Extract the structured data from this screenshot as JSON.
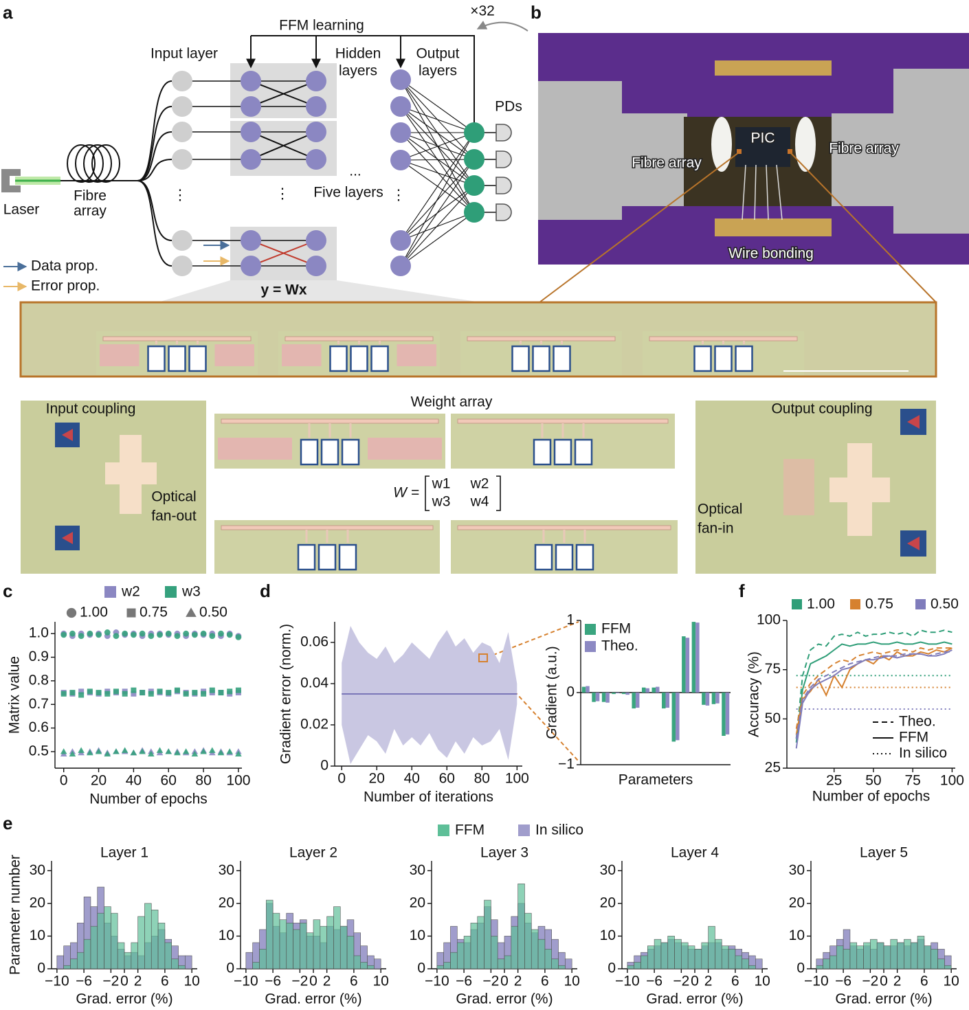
{
  "diagram": {
    "panel_label": "a",
    "feedback": "FFM learning",
    "repeat": "×32",
    "input_layer": "Input layer",
    "hidden_layers": [
      "Hidden",
      "layers"
    ],
    "output_layers": [
      "Output",
      "layers"
    ],
    "pds": "PDs",
    "laser": "Laser",
    "fibre_array": [
      "Fibre",
      "array"
    ],
    "five_layers": "Five layers",
    "ellipsis": "...",
    "vdots": "⋮",
    "data_prop": "Data prop.",
    "error_prop": "Error prop.",
    "equation": "y = Wx"
  },
  "photo": {
    "panel_label": "b",
    "pic": "PIC",
    "fibre_left": "Fibre array",
    "fibre_right": "Fibre array",
    "wire_bonding": "Wire bonding"
  },
  "micrographs": {
    "input_coupling": "Input coupling",
    "weight_array": "Weight array",
    "output_coupling": "Output coupling",
    "fan_out": [
      "Optical",
      "fan-out"
    ],
    "fan_in": [
      "Optical",
      "fan-in"
    ],
    "matrix": {
      "lhs": "W =",
      "cells": [
        "w1",
        "w2",
        "w3",
        "w4"
      ]
    }
  },
  "chart_data": [
    {
      "type": "scatter",
      "panel_label": "c",
      "xlabel": "Number of epochs",
      "ylabel": "Matrix value",
      "x": [
        0,
        5,
        10,
        15,
        20,
        25,
        30,
        35,
        40,
        45,
        50,
        55,
        60,
        65,
        70,
        75,
        80,
        85,
        90,
        95,
        100
      ],
      "levels": [
        {
          "name": "1.00",
          "marker": "circle"
        },
        {
          "name": "0.75",
          "marker": "square"
        },
        {
          "name": "0.50",
          "marker": "triangle"
        }
      ],
      "series": [
        {
          "name": "w2",
          "color": "#8b87c2",
          "levels": [
            [
              1.0,
              0.99,
              1.0,
              0.995,
              1.0,
              0.99,
              1.005,
              0.995,
              1.0,
              0.99,
              1.0,
              1.0,
              0.995,
              1.0,
              0.99,
              1.0,
              0.995,
              1.0,
              0.99,
              1.0,
              0.99
            ],
            [
              0.75,
              0.745,
              0.755,
              0.75,
              0.745,
              0.755,
              0.75,
              0.755,
              0.745,
              0.75,
              0.755,
              0.75,
              0.745,
              0.755,
              0.75,
              0.745,
              0.755,
              0.75,
              0.75,
              0.745,
              0.75
            ],
            [
              0.49,
              0.5,
              0.495,
              0.5,
              0.505,
              0.495,
              0.5,
              0.5,
              0.495,
              0.505,
              0.5,
              0.495,
              0.5,
              0.5,
              0.495,
              0.5,
              0.505,
              0.495,
              0.5,
              0.495,
              0.5
            ]
          ]
        },
        {
          "name": "w3",
          "color": "#35a17d",
          "levels": [
            [
              0.995,
              1.0,
              0.99,
              1.0,
              0.995,
              1.005,
              0.99,
              1.0,
              0.995,
              1.0,
              0.99,
              0.995,
              1.0,
              0.99,
              1.0,
              0.995,
              1.0,
              0.99,
              1.0,
              0.995,
              0.985
            ],
            [
              0.745,
              0.75,
              0.74,
              0.755,
              0.75,
              0.745,
              0.755,
              0.745,
              0.76,
              0.75,
              0.745,
              0.755,
              0.75,
              0.76,
              0.745,
              0.75,
              0.745,
              0.76,
              0.75,
              0.755,
              0.76
            ],
            [
              0.5,
              0.49,
              0.505,
              0.495,
              0.5,
              0.49,
              0.5,
              0.505,
              0.495,
              0.5,
              0.49,
              0.505,
              0.5,
              0.495,
              0.5,
              0.49,
              0.5,
              0.505,
              0.495,
              0.5,
              0.49
            ]
          ]
        }
      ],
      "xlim": [
        -5,
        102
      ],
      "ylim": [
        0.43,
        1.05
      ],
      "xticks": [
        0,
        20,
        40,
        60,
        80,
        100
      ],
      "yticks": [
        0.5,
        0.6,
        0.7,
        0.8,
        0.9,
        {
          "value": 1,
          "label": "1.0"
        }
      ]
    },
    {
      "type": "band",
      "panel_label": "d",
      "xlabel": "Number of iterations",
      "ylabel": "Gradient error (norm.)",
      "x": [
        0,
        5,
        10,
        15,
        20,
        25,
        30,
        35,
        40,
        45,
        50,
        55,
        60,
        65,
        70,
        75,
        80,
        85,
        90,
        95,
        100
      ],
      "values": [
        0.035,
        0.035,
        0.035,
        0.035,
        0.035,
        0.035,
        0.035,
        0.035,
        0.035,
        0.035,
        0.035,
        0.035,
        0.035,
        0.035,
        0.035,
        0.035,
        0.035,
        0.035,
        0.035,
        0.035,
        0.035
      ],
      "upper": [
        0.05,
        0.068,
        0.06,
        0.055,
        0.052,
        0.058,
        0.05,
        0.054,
        0.06,
        0.056,
        0.052,
        0.06,
        0.066,
        0.058,
        0.062,
        0.055,
        0.06,
        0.058,
        0.05,
        0.065,
        0.04
      ],
      "lower": [
        0.02,
        0.001,
        0.008,
        0.015,
        0.012,
        0.006,
        0.018,
        0.01,
        0.014,
        0.01,
        0.016,
        0.008,
        0.004,
        0.012,
        0.006,
        0.014,
        0.01,
        0.012,
        0.018,
        0.003,
        0.03
      ],
      "color": "#7a76b8",
      "band_color": "#c9c7e2",
      "xlim": [
        -4,
        103
      ],
      "ylim": [
        0,
        0.07
      ],
      "xticks": [
        0,
        20,
        40,
        60,
        80,
        100
      ],
      "yticks": [
        0,
        0.02,
        0.04,
        0.06
      ]
    },
    {
      "type": "bar",
      "xlabel": "Parameters",
      "ylabel": "Gradient (a.u.)",
      "series": [
        {
          "name": "FFM",
          "color": "#3aa57f",
          "values": [
            0.08,
            -0.13,
            -0.13,
            -0.02,
            -0.02,
            -0.22,
            0.07,
            0.07,
            -0.22,
            -0.68,
            0.78,
            0.98,
            -0.17,
            -0.16,
            -0.6
          ]
        },
        {
          "name": "Theo.",
          "color": "#8c89c3",
          "values": [
            0.09,
            -0.12,
            -0.14,
            -0.01,
            -0.03,
            -0.21,
            0.06,
            0.08,
            -0.21,
            -0.66,
            0.76,
            0.97,
            -0.18,
            -0.15,
            -0.58
          ]
        }
      ],
      "ylim": [
        -1,
        1
      ],
      "yticks": [
        {
          "value": -1,
          "label": "−1"
        },
        0,
        1
      ]
    },
    {
      "type": "histogram",
      "panel_label": "e",
      "xlabel": "Grad. error (%)",
      "ylabel": "Parameter number",
      "series": [
        {
          "name": "FFM",
          "color": "#5ebf98"
        },
        {
          "name": "In silico",
          "color": "#a09dcc"
        }
      ],
      "bins": [
        -10,
        -9,
        -8,
        -7,
        -6,
        -5,
        -4,
        -3,
        -2,
        -1,
        0,
        1,
        2,
        3,
        4,
        5,
        6,
        7,
        8,
        9,
        10
      ],
      "xlim": [
        -10.8,
        10.8
      ],
      "ylim": [
        0,
        33
      ],
      "xticks": [
        {
          "value": -10,
          "label": "−10"
        },
        {
          "value": -6,
          "label": "−6"
        },
        {
          "value": -2,
          "label": "−2"
        },
        0,
        2,
        6,
        10
      ],
      "yticks": [
        0,
        10,
        20,
        30
      ],
      "panels": [
        {
          "title": "Layer 1",
          "values": [
            [
              0,
              1,
              3,
              5,
              9,
              13,
              17,
              19,
              17,
              8,
              5,
              8,
              16,
              20,
              18,
              14,
              8,
              3,
              1,
              0
            ],
            [
              4,
              7,
              8,
              14,
              22,
              19,
              25,
              14,
              10,
              6,
              4,
              5,
              4,
              8,
              10,
              12,
              9,
              7,
              4,
              4
            ]
          ]
        },
        {
          "title": "Layer 2",
          "values": [
            [
              0,
              2,
              6,
              21,
              17,
              15,
              14,
              12,
              14,
              11,
              15,
              13,
              16,
              19,
              13,
              10,
              4,
              2,
              1,
              0
            ],
            [
              5,
              8,
              12,
              20,
              13,
              11,
              17,
              14,
              15,
              10,
              10,
              8,
              13,
              12,
              13,
              15,
              11,
              7,
              4,
              3
            ]
          ]
        },
        {
          "title": "Layer 3",
          "values": [
            [
              1,
              2,
              5,
              8,
              10,
              14,
              16,
              21,
              10,
              3,
              4,
              13,
              26,
              17,
              12,
              9,
              6,
              3,
              1,
              0
            ],
            [
              5,
              8,
              13,
              9,
              8,
              12,
              14,
              19,
              15,
              8,
              10,
              16,
              20,
              14,
              11,
              13,
              12,
              9,
              5,
              3
            ]
          ]
        },
        {
          "title": "Layer 4",
          "values": [
            [
              1,
              2,
              4,
              7,
              9,
              8,
              10,
              9,
              8,
              7,
              6,
              8,
              13,
              9,
              7,
              6,
              4,
              3,
              1,
              0
            ],
            [
              2,
              4,
              5,
              6,
              7,
              8,
              9,
              8,
              7,
              6,
              6,
              7,
              8,
              8,
              6,
              7,
              6,
              5,
              4,
              3
            ]
          ]
        },
        {
          "title": "Layer 5",
          "values": [
            [
              1,
              3,
              4,
              7,
              6,
              8,
              7,
              8,
              9,
              8,
              7,
              9,
              8,
              9,
              8,
              10,
              7,
              6,
              3,
              1
            ],
            [
              3,
              5,
              7,
              9,
              12,
              7,
              6,
              7,
              6,
              8,
              7,
              7,
              8,
              7,
              8,
              9,
              7,
              8,
              6,
              4
            ]
          ]
        }
      ]
    },
    {
      "type": "line",
      "panel_label": "f",
      "xlabel": "Number of epochs",
      "ylabel": "Accuracy (%)",
      "x": [
        1,
        5,
        10,
        15,
        20,
        25,
        30,
        35,
        40,
        45,
        50,
        55,
        60,
        65,
        70,
        75,
        80,
        85,
        90,
        95,
        100
      ],
      "styles": [
        {
          "name": "Theo.",
          "dash": "dashed"
        },
        {
          "name": "FFM",
          "dash": "solid"
        },
        {
          "name": "In silico",
          "dash": "dotted"
        }
      ],
      "series": [
        {
          "name": "1.00",
          "color": "#2f9e78",
          "values": [
            [
              40,
              72,
              85,
              88,
              87,
              92,
              93,
              92,
              94,
              92,
              93,
              93,
              94,
              93,
              94,
              92,
              95,
              94,
              94,
              95,
              94
            ],
            [
              38,
              65,
              78,
              80,
              82,
              85,
              88,
              87,
              88,
              88,
              89,
              88,
              88,
              89,
              88,
              88,
              89,
              88,
              88,
              89,
              88
            ],
            [
              72,
              72,
              72,
              72,
              72,
              72,
              72,
              72,
              72,
              72,
              72,
              72,
              72,
              72,
              72,
              72,
              72,
              72,
              72,
              72,
              72
            ]
          ]
        },
        {
          "name": "0.75",
          "color": "#d6812f",
          "values": [
            [
              45,
              62,
              68,
              72,
              75,
              78,
              80,
              79,
              82,
              83,
              84,
              83,
              84,
              85,
              85,
              84,
              86,
              85,
              86,
              86,
              86
            ],
            [
              42,
              60,
              64,
              70,
              62,
              72,
              66,
              75,
              78,
              80,
              78,
              82,
              80,
              84,
              82,
              82,
              84,
              83,
              85,
              84,
              86
            ],
            [
              66,
              66,
              66,
              66,
              66,
              66,
              66,
              66,
              66,
              66,
              66,
              66,
              66,
              66,
              66,
              66,
              66,
              66,
              66,
              66,
              66
            ]
          ]
        },
        {
          "name": "0.50",
          "color": "#7f7cbb",
          "values": [
            [
              40,
              60,
              66,
              70,
              72,
              74,
              76,
              78,
              79,
              80,
              81,
              82,
              82,
              82,
              83,
              83,
              83,
              82,
              83,
              84,
              84
            ],
            [
              35,
              58,
              65,
              68,
              70,
              72,
              75,
              76,
              78,
              80,
              80,
              81,
              82,
              81,
              82,
              83,
              83,
              82,
              82,
              83,
              85
            ],
            [
              55,
              55,
              55,
              55,
              55,
              55,
              55,
              55,
              55,
              55,
              55,
              55,
              55,
              55,
              55,
              55,
              55,
              55,
              55,
              55,
              55
            ]
          ]
        }
      ],
      "xlim": [
        -5,
        102
      ],
      "ylim": [
        25,
        100
      ],
      "xticks": [
        25,
        50,
        75,
        100
      ],
      "yticks": [
        25,
        50,
        75,
        100
      ]
    }
  ]
}
